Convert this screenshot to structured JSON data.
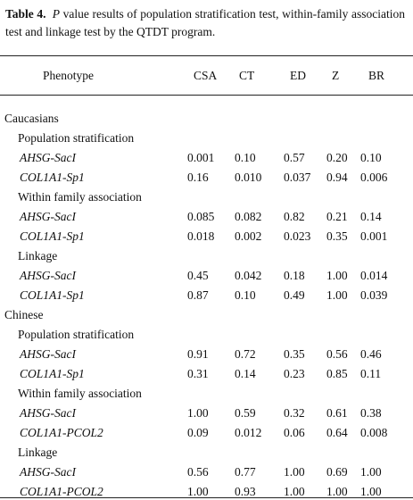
{
  "caption": {
    "label": "Table 4.",
    "italic": "P",
    "text": "value results of population stratification test, within-family association test and linkage test by the QTDT program."
  },
  "table": {
    "header": [
      "Phenotype",
      "CSA",
      "CT",
      "ED",
      "Z",
      "BR"
    ],
    "groups": [
      {
        "name": "Caucasians",
        "tests": [
          {
            "name": "Population stratification",
            "rows": [
              {
                "phenotype": "AHSG-SacI",
                "values": [
                  "0.001",
                  "0.10",
                  "0.57",
                  "0.20",
                  "0.10"
                ]
              },
              {
                "phenotype": "COL1A1-Sp1",
                "values": [
                  "0.16",
                  "0.010",
                  "0.037",
                  "0.94",
                  "0.006"
                ]
              }
            ]
          },
          {
            "name": "Within family association",
            "rows": [
              {
                "phenotype": "AHSG-SacI",
                "values": [
                  "0.085",
                  "0.082",
                  "0.82",
                  "0.21",
                  "0.14"
                ]
              },
              {
                "phenotype": "COL1A1-Sp1",
                "values": [
                  "0.018",
                  "0.002",
                  "0.023",
                  "0.35",
                  "0.001"
                ]
              }
            ]
          },
          {
            "name": "Linkage",
            "rows": [
              {
                "phenotype": "AHSG-SacI",
                "values": [
                  "0.45",
                  "0.042",
                  "0.18",
                  "1.00",
                  "0.014"
                ]
              },
              {
                "phenotype": "COL1A1-Sp1",
                "values": [
                  "0.87",
                  "0.10",
                  "0.49",
                  "1.00",
                  "0.039"
                ]
              }
            ]
          }
        ]
      },
      {
        "name": "Chinese",
        "tests": [
          {
            "name": "Population stratification",
            "rows": [
              {
                "phenotype": "AHSG-SacI",
                "values": [
                  "0.91",
                  "0.72",
                  "0.35",
                  "0.56",
                  "0.46"
                ]
              },
              {
                "phenotype": "COL1A1-Sp1",
                "values": [
                  "0.31",
                  "0.14",
                  "0.23",
                  "0.85",
                  "0.11"
                ]
              }
            ]
          },
          {
            "name": "Within family association",
            "rows": [
              {
                "phenotype": "AHSG-SacI",
                "values": [
                  "1.00",
                  "0.59",
                  "0.32",
                  "0.61",
                  "0.38"
                ]
              },
              {
                "phenotype": "COL1A1-PCOL2",
                "values": [
                  "0.09",
                  "0.012",
                  "0.06",
                  "0.64",
                  "0.008"
                ]
              }
            ]
          },
          {
            "name": "Linkage",
            "rows": [
              {
                "phenotype": "AHSG-SacI",
                "values": [
                  "0.56",
                  "0.77",
                  "1.00",
                  "0.69",
                  "1.00"
                ]
              },
              {
                "phenotype": "COL1A1-PCOL2",
                "values": [
                  "1.00",
                  "0.93",
                  "1.00",
                  "1.00",
                  "1.00"
                ]
              }
            ]
          }
        ]
      }
    ]
  }
}
